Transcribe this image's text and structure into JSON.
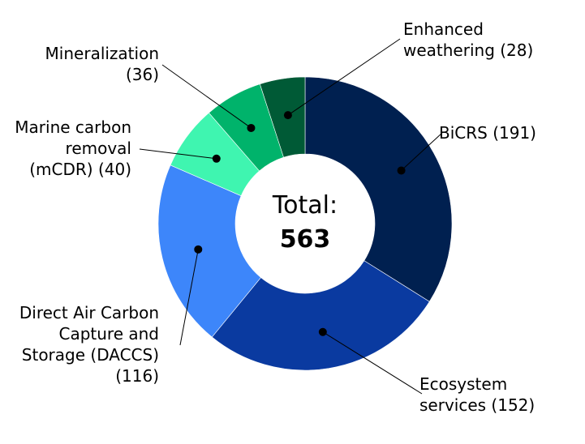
{
  "chart_data": {
    "type": "pie",
    "variant": "donut",
    "center_label": "Total:",
    "center_value": "563",
    "slices": [
      {
        "key": "bicrs",
        "label": "BiCRS (191)",
        "value": 191,
        "color": "#002050"
      },
      {
        "key": "ecosystem",
        "label": "Ecosystem services (152)",
        "value": 152,
        "color": "#0a3aa0"
      },
      {
        "key": "daccs",
        "label": "Direct Air Carbon Capture and Storage (DACCS) (116)",
        "value": 116,
        "color": "#3d86fa"
      },
      {
        "key": "mcdr",
        "label": "Marine carbon removal (mCDR) (40)",
        "value": 40,
        "color": "#3ff5b0"
      },
      {
        "key": "mineral",
        "label": "Mineralization (36)",
        "value": 36,
        "color": "#00b36b"
      },
      {
        "key": "weathering",
        "label": "Enhanced weathering (28)",
        "value": 28,
        "color": "#005a36"
      }
    ],
    "label_lines": {
      "bicrs": [
        "BiCRS (191)"
      ],
      "ecosystem": [
        "Ecosystem",
        "services (152)"
      ],
      "daccs": [
        "Direct Air Carbon",
        "Capture and",
        "Storage (DACCS)",
        "(116)"
      ],
      "mcdr": [
        "Marine carbon",
        "removal",
        "(mCDR) (40)"
      ],
      "mineral": [
        "Mineralization",
        "(36)"
      ],
      "weathering": [
        "Enhanced",
        "weathering (28)"
      ]
    }
  }
}
